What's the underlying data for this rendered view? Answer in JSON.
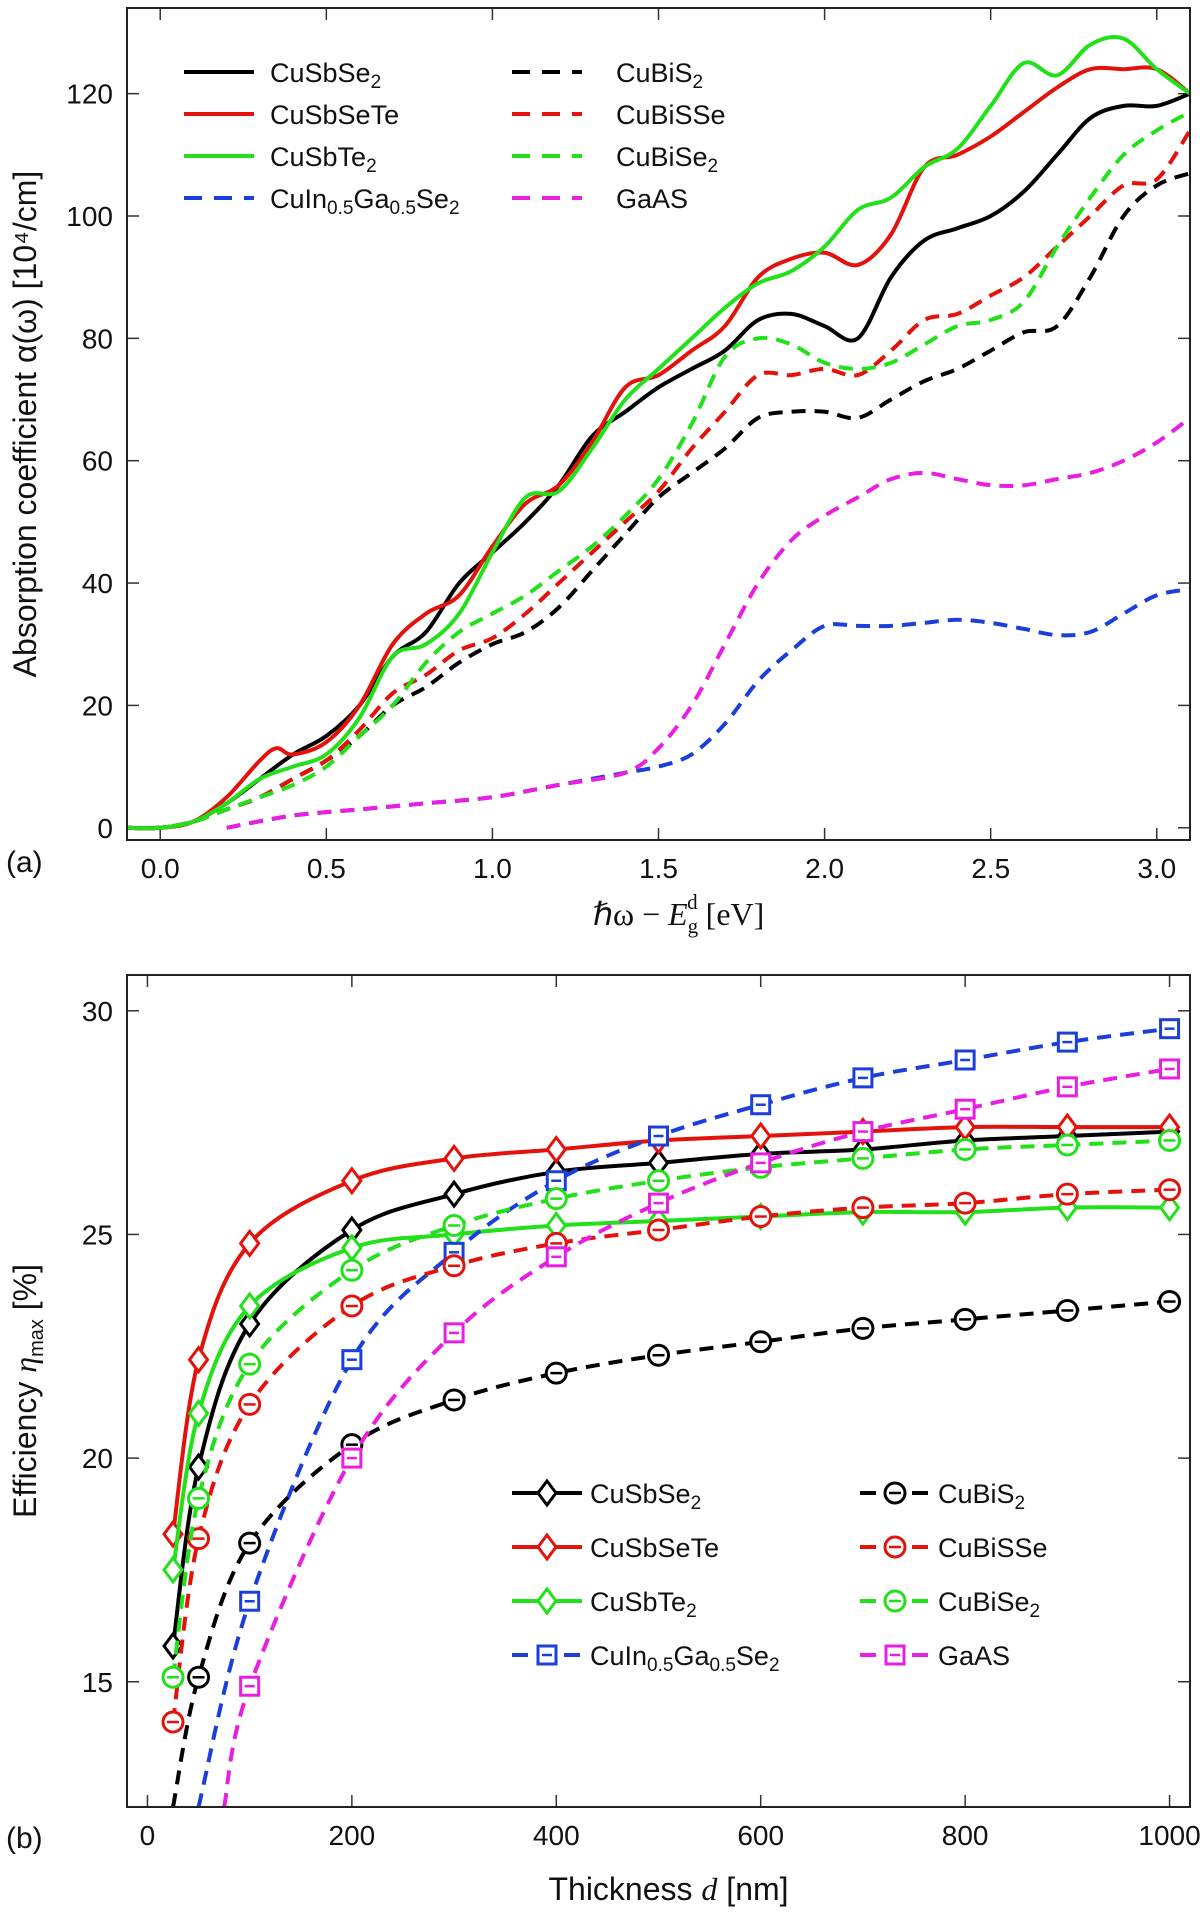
{
  "chart_data": [
    {
      "type": "line",
      "panel_label": "(a)",
      "ylabel_prefix": "Absorption coefficient ",
      "ylabel_symbol": "α(ω)",
      "ylabel_units": "[10⁴/cm]",
      "xlabel_pre": "ℏω − ",
      "xlabel_E": "E",
      "xlabel_sub": "g",
      "xlabel_sup": "d",
      "xlabel_units": "[eV]",
      "xlim": [
        -0.1,
        3.1
      ],
      "ylim": [
        -2,
        134
      ],
      "xticks": [
        0.0,
        0.5,
        1.0,
        1.5,
        2.0,
        2.5,
        3.0
      ],
      "xtick_labels": [
        "0.0",
        "0.5",
        "1.0",
        "1.5",
        "2.0",
        "2.5",
        "3.0"
      ],
      "yticks": [
        0,
        20,
        40,
        60,
        80,
        100,
        120
      ],
      "ytick_labels": [
        "0",
        "20",
        "40",
        "60",
        "80",
        "100",
        "120"
      ],
      "legend_position": "top-left",
      "series": [
        {
          "name": "CuSbSe",
          "sub": "2",
          "color": "#000000",
          "dash": "solid",
          "x": [
            -0.1,
            0,
            0.1,
            0.2,
            0.3,
            0.4,
            0.5,
            0.6,
            0.7,
            0.8,
            0.9,
            1.0,
            1.1,
            1.2,
            1.3,
            1.4,
            1.5,
            1.6,
            1.7,
            1.8,
            1.9,
            2.0,
            2.1,
            2.2,
            2.3,
            2.4,
            2.5,
            2.6,
            2.7,
            2.8,
            2.9,
            3.0,
            3.1
          ],
          "y": [
            0,
            0,
            1,
            4,
            8,
            12,
            15,
            20,
            28,
            32,
            40,
            45,
            50,
            56,
            64,
            68,
            72,
            75,
            78,
            83,
            84,
            82,
            80,
            90,
            96,
            98,
            100,
            104,
            110,
            116,
            118,
            118,
            120
          ]
        },
        {
          "name": "CuSbSeTe",
          "sub": "",
          "color": "#e3120b",
          "dash": "solid",
          "x": [
            -0.1,
            0,
            0.1,
            0.2,
            0.3,
            0.35,
            0.4,
            0.5,
            0.6,
            0.7,
            0.8,
            0.9,
            1.0,
            1.1,
            1.2,
            1.3,
            1.4,
            1.5,
            1.6,
            1.7,
            1.8,
            1.9,
            2.0,
            2.1,
            2.2,
            2.3,
            2.4,
            2.5,
            2.6,
            2.7,
            2.8,
            2.9,
            3.0,
            3.1
          ],
          "y": [
            0,
            0,
            1,
            5,
            11,
            13,
            12,
            14,
            20,
            30,
            35,
            38,
            46,
            53,
            56,
            63,
            72,
            74,
            78,
            82,
            90,
            93,
            94,
            92,
            97,
            108,
            110,
            113,
            117,
            121,
            124,
            124,
            124,
            120
          ]
        },
        {
          "name": "CuSbTe",
          "sub": "2",
          "color": "#22e01a",
          "dash": "solid",
          "x": [
            -0.1,
            0,
            0.1,
            0.2,
            0.3,
            0.4,
            0.5,
            0.6,
            0.7,
            0.8,
            0.9,
            1.0,
            1.1,
            1.2,
            1.3,
            1.4,
            1.5,
            1.6,
            1.7,
            1.8,
            1.9,
            2.0,
            2.1,
            2.2,
            2.3,
            2.4,
            2.5,
            2.6,
            2.7,
            2.8,
            2.9,
            3.0,
            3.1
          ],
          "y": [
            0,
            0,
            1,
            4,
            8,
            10,
            12,
            18,
            28,
            30,
            35,
            45,
            54,
            55,
            62,
            70,
            75,
            80,
            85,
            89,
            91,
            95,
            101,
            103,
            108,
            111,
            118,
            125,
            123,
            128,
            129,
            124,
            120
          ]
        },
        {
          "name": "CuIn",
          "sub_a": "0.5",
          "name_b": "Ga",
          "sub_b": "0.5",
          "name_c": "Se",
          "sub_c": "2",
          "color": "#1a3fdb",
          "dash": "dashed",
          "x": [
            0.2,
            0.4,
            0.6,
            0.8,
            1.0,
            1.2,
            1.4,
            1.5,
            1.6,
            1.7,
            1.8,
            1.9,
            2.0,
            2.1,
            2.2,
            2.3,
            2.4,
            2.5,
            2.6,
            2.7,
            2.8,
            2.9,
            3.0,
            3.1
          ],
          "y": [
            0,
            2,
            3,
            4,
            5,
            7,
            9,
            10,
            12,
            17,
            24,
            29,
            33,
            33,
            33,
            33.5,
            34,
            33.5,
            32.5,
            31.5,
            32,
            35,
            38,
            39
          ]
        },
        {
          "name": "CuBiS",
          "sub": "2",
          "color": "#000000",
          "dash": "dashed",
          "x": [
            -0.1,
            0,
            0.1,
            0.2,
            0.3,
            0.4,
            0.5,
            0.6,
            0.7,
            0.8,
            0.9,
            1.0,
            1.1,
            1.2,
            1.3,
            1.4,
            1.5,
            1.6,
            1.7,
            1.8,
            1.9,
            2.0,
            2.1,
            2.2,
            2.3,
            2.4,
            2.5,
            2.6,
            2.7,
            2.8,
            2.9,
            3.0,
            3.1
          ],
          "y": [
            0,
            0,
            1,
            3,
            5,
            8,
            11,
            15,
            20,
            23,
            27,
            30,
            32,
            36,
            42,
            48,
            54,
            58,
            62,
            67,
            68,
            68,
            67,
            70,
            73,
            75,
            78,
            81,
            82,
            90,
            100,
            105,
            107
          ]
        },
        {
          "name": "CuBiSSe",
          "sub": "",
          "color": "#e3120b",
          "dash": "dashed",
          "x": [
            -0.1,
            0,
            0.1,
            0.2,
            0.3,
            0.4,
            0.5,
            0.6,
            0.7,
            0.8,
            0.9,
            1.0,
            1.1,
            1.2,
            1.3,
            1.4,
            1.5,
            1.6,
            1.7,
            1.8,
            1.9,
            2.0,
            2.1,
            2.2,
            2.3,
            2.4,
            2.5,
            2.6,
            2.7,
            2.8,
            2.9,
            3.0,
            3.1
          ],
          "y": [
            0,
            0,
            1,
            3,
            5,
            8,
            11,
            16,
            22,
            25,
            29,
            31,
            35,
            40,
            45,
            50,
            55,
            62,
            68,
            74,
            74,
            75,
            74,
            78,
            83,
            84,
            87,
            90,
            95,
            100,
            105,
            106,
            114
          ]
        },
        {
          "name": "CuBiSe",
          "sub": "2",
          "color": "#22e01a",
          "dash": "dashed",
          "x": [
            -0.1,
            0,
            0.1,
            0.2,
            0.3,
            0.4,
            0.5,
            0.6,
            0.7,
            0.8,
            0.9,
            1.0,
            1.1,
            1.2,
            1.3,
            1.4,
            1.5,
            1.6,
            1.7,
            1.8,
            1.9,
            2.0,
            2.1,
            2.2,
            2.3,
            2.4,
            2.5,
            2.6,
            2.7,
            2.8,
            2.9,
            3.0,
            3.1
          ],
          "y": [
            0,
            0,
            1,
            3,
            5,
            7,
            10,
            15,
            20,
            27,
            32,
            35,
            38,
            42,
            46,
            51,
            57,
            66,
            77,
            80,
            79,
            76,
            75,
            76,
            79,
            82,
            83,
            86,
            95,
            103,
            110,
            114,
            117
          ]
        },
        {
          "name": "GaAS",
          "sub": "",
          "color": "#e81ee0",
          "dash": "dashed",
          "x": [
            0.2,
            0.4,
            0.6,
            0.8,
            1.0,
            1.2,
            1.4,
            1.5,
            1.6,
            1.7,
            1.8,
            1.9,
            2.0,
            2.1,
            2.2,
            2.3,
            2.4,
            2.5,
            2.6,
            2.7,
            2.8,
            2.9,
            3.0,
            3.1
          ],
          "y": [
            0,
            2,
            3,
            4,
            5,
            7,
            9,
            13,
            20,
            30,
            40,
            47,
            51,
            54,
            57,
            58,
            57,
            56,
            56,
            57,
            58,
            60,
            63,
            67
          ]
        }
      ]
    },
    {
      "type": "line",
      "panel_label": "(b)",
      "ylabel_prefix": "Efficiency ",
      "ylabel_symbol": "η",
      "ylabel_sub": "max",
      "ylabel_units": "[%]",
      "xlabel_prefix": "Thickness ",
      "xlabel_symbol": "d",
      "xlabel_units": "[nm]",
      "xlim": [
        -20,
        1020
      ],
      "ylim": [
        12.2,
        30.8
      ],
      "xticks": [
        0,
        200,
        400,
        600,
        800,
        1000
      ],
      "xtick_labels": [
        "0",
        "200",
        "400",
        "600",
        "800",
        "1000"
      ],
      "yticks": [
        15,
        20,
        25,
        30
      ],
      "ytick_labels": [
        "15",
        "20",
        "25",
        "30"
      ],
      "legend_position": "bottom-right",
      "series": [
        {
          "name": "CuSbSe",
          "sub": "2",
          "color": "#000000",
          "dash": "solid",
          "marker": "diamond",
          "x": [
            25,
            50,
            100,
            200,
            300,
            400,
            500,
            600,
            700,
            800,
            900,
            1000
          ],
          "y": [
            15.8,
            19.8,
            23.0,
            25.1,
            25.9,
            26.4,
            26.6,
            26.8,
            26.9,
            27.1,
            27.2,
            27.3
          ],
          "marker_x": [
            25,
            50,
            100,
            200,
            300,
            400,
            500,
            600,
            700,
            800,
            900,
            1000
          ]
        },
        {
          "name": "CuSbSeTe",
          "sub": "",
          "color": "#e3120b",
          "dash": "solid",
          "marker": "diamond",
          "x": [
            25,
            50,
            100,
            200,
            300,
            400,
            500,
            600,
            700,
            800,
            900,
            1000
          ],
          "y": [
            18.3,
            22.2,
            24.8,
            26.2,
            26.7,
            26.9,
            27.1,
            27.2,
            27.3,
            27.4,
            27.4,
            27.4
          ],
          "marker_x": [
            25,
            50,
            100,
            200,
            300,
            400,
            500,
            600,
            700,
            800,
            900,
            1000
          ]
        },
        {
          "name": "CuSbTe",
          "sub": "2",
          "color": "#22e01a",
          "dash": "solid",
          "marker": "diamond",
          "x": [
            25,
            50,
            100,
            200,
            300,
            400,
            500,
            600,
            700,
            800,
            900,
            1000
          ],
          "y": [
            17.5,
            21.0,
            23.4,
            24.7,
            25.0,
            25.2,
            25.3,
            25.4,
            25.5,
            25.5,
            25.6,
            25.6
          ],
          "marker_x": [
            25,
            50,
            100,
            200,
            300,
            400,
            500,
            600,
            700,
            800,
            900,
            1000
          ]
        },
        {
          "name": "CuIn",
          "sub_a": "0.5",
          "name_b": "Ga",
          "sub_b": "0.5",
          "name_c": "Se",
          "sub_c": "2",
          "color": "#1a3fdb",
          "dash": "dashed",
          "marker": "square",
          "x": [
            50,
            100,
            200,
            300,
            400,
            500,
            600,
            700,
            800,
            900,
            1000
          ],
          "y": [
            12.2,
            16.8,
            22.2,
            24.6,
            26.2,
            27.2,
            27.9,
            28.5,
            28.9,
            29.3,
            29.6
          ],
          "marker_x": [
            100,
            200,
            300,
            400,
            500,
            600,
            700,
            800,
            900,
            1000
          ]
        },
        {
          "name": "CuBiS",
          "sub": "2",
          "color": "#000000",
          "dash": "dashed",
          "marker": "circle",
          "x": [
            25,
            50,
            100,
            200,
            300,
            400,
            500,
            600,
            700,
            800,
            900,
            1000
          ],
          "y": [
            12.2,
            15.1,
            18.1,
            20.3,
            21.3,
            21.9,
            22.3,
            22.6,
            22.9,
            23.1,
            23.3,
            23.5
          ],
          "marker_x": [
            50,
            100,
            200,
            300,
            400,
            500,
            600,
            700,
            800,
            900,
            1000
          ]
        },
        {
          "name": "CuBiSSe",
          "sub": "",
          "color": "#e3120b",
          "dash": "dashed",
          "marker": "circle",
          "x": [
            25,
            50,
            100,
            200,
            300,
            400,
            500,
            600,
            700,
            800,
            900,
            1000
          ],
          "y": [
            14.1,
            18.2,
            21.2,
            23.4,
            24.3,
            24.8,
            25.1,
            25.4,
            25.6,
            25.7,
            25.9,
            26.0
          ],
          "marker_x": [
            25,
            50,
            100,
            200,
            300,
            400,
            500,
            600,
            700,
            800,
            900,
            1000
          ]
        },
        {
          "name": "CuBiSe",
          "sub": "2",
          "color": "#22e01a",
          "dash": "dashed",
          "marker": "circle",
          "x": [
            25,
            50,
            100,
            200,
            300,
            400,
            500,
            600,
            700,
            800,
            900,
            1000
          ],
          "y": [
            15.1,
            19.1,
            22.1,
            24.2,
            25.2,
            25.8,
            26.2,
            26.5,
            26.7,
            26.9,
            27.0,
            27.1
          ],
          "marker_x": [
            25,
            50,
            100,
            200,
            300,
            400,
            500,
            600,
            700,
            800,
            900,
            1000
          ]
        },
        {
          "name": "GaAS",
          "sub": "",
          "color": "#e81ee0",
          "dash": "dashed",
          "marker": "square",
          "x": [
            75,
            100,
            200,
            300,
            400,
            500,
            600,
            700,
            800,
            900,
            1000
          ],
          "y": [
            12.2,
            14.9,
            20.0,
            22.8,
            24.5,
            25.7,
            26.6,
            27.3,
            27.8,
            28.3,
            28.7
          ],
          "marker_x": [
            100,
            200,
            300,
            400,
            500,
            600,
            700,
            800,
            900,
            1000
          ]
        }
      ]
    }
  ]
}
